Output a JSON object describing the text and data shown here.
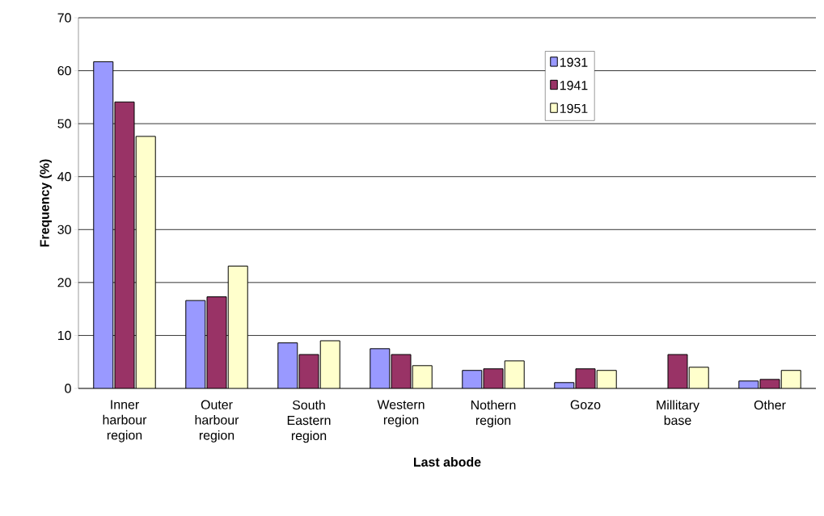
{
  "chart_data": {
    "type": "bar",
    "xlabel": "Last abode",
    "ylabel": "Frequency (%)",
    "categories": [
      "Inner harbour region",
      "Outer harbour region",
      "South Eastern region",
      "Western region",
      "Nothern region",
      "Gozo",
      "Millitary base",
      "Other"
    ],
    "series": [
      {
        "name": "1931",
        "color": "#9999ff",
        "values": [
          61.7,
          16.6,
          8.6,
          7.5,
          3.4,
          1.1,
          null,
          1.4
        ]
      },
      {
        "name": "1941",
        "color": "#993366",
        "values": [
          54.1,
          17.3,
          6.4,
          6.4,
          3.7,
          3.7,
          6.4,
          1.7
        ]
      },
      {
        "name": "1951",
        "color": "#ffffcc",
        "values": [
          47.6,
          23.1,
          9.0,
          4.3,
          5.2,
          3.4,
          4.0,
          3.4
        ]
      }
    ],
    "ylim": [
      0,
      70
    ],
    "yticks": [
      0,
      10,
      20,
      30,
      40,
      50,
      60,
      70
    ],
    "grid": "y",
    "legend": "top right"
  }
}
